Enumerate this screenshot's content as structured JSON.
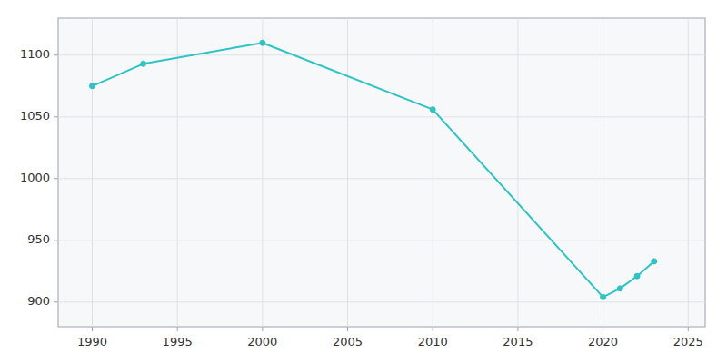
{
  "chart_data": {
    "type": "line",
    "x": [
      1990,
      1993,
      2000,
      2010,
      2020,
      2021,
      2022,
      2023
    ],
    "values": [
      1075,
      1093,
      1110,
      1056,
      904,
      911,
      921,
      933
    ],
    "color": "#2EC4C4",
    "marker": "circle",
    "xlim": [
      1988,
      2026
    ],
    "ylim": [
      880,
      1130
    ],
    "xticks": [
      1990,
      1995,
      2000,
      2005,
      2010,
      2015,
      2020,
      2025
    ],
    "yticks": [
      900,
      950,
      1000,
      1050,
      1100
    ],
    "grid": true
  }
}
